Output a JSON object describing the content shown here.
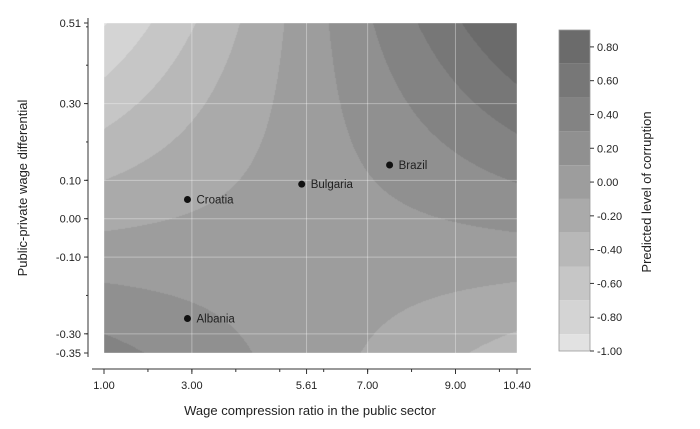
{
  "chart_data": {
    "type": "contour",
    "xlabel": "Wage compression ratio in the public sector",
    "ylabel": "Public-private wage differential",
    "xlim": [
      1.0,
      10.4
    ],
    "ylim": [
      -0.35,
      0.51
    ],
    "x_ticks": [
      {
        "value": 1.0,
        "label": "1.00"
      },
      {
        "value": 3.0,
        "label": "3.00"
      },
      {
        "value": 5.61,
        "label": "5.61"
      },
      {
        "value": 7.0,
        "label": "7.00"
      },
      {
        "value": 9.0,
        "label": "9.00"
      },
      {
        "value": 10.4,
        "label": "10.40"
      }
    ],
    "y_ticks": [
      {
        "value": 0.51,
        "label": "0.51"
      },
      {
        "value": 0.3,
        "label": "0.30"
      },
      {
        "value": 0.1,
        "label": "0.10"
      },
      {
        "value": 0.0,
        "label": "0.00"
      },
      {
        "value": -0.1,
        "label": "-0.10"
      },
      {
        "value": -0.3,
        "label": "-0.30"
      },
      {
        "value": -0.35,
        "label": "-0.35"
      }
    ],
    "saddle": {
      "x": 5.61,
      "y": -0.1
    },
    "countries": [
      {
        "name": "Brazil",
        "x": 7.5,
        "y": 0.14
      },
      {
        "name": "Bulgaria",
        "x": 5.5,
        "y": 0.09
      },
      {
        "name": "Croatia",
        "x": 2.9,
        "y": 0.05
      },
      {
        "name": "Albania",
        "x": 2.9,
        "y": -0.26
      }
    ],
    "colorbar": {
      "label": "Predicted level of corruption",
      "min": -1.0,
      "max": 0.9,
      "ticks": [
        {
          "value": 0.8,
          "label": "0.80"
        },
        {
          "value": 0.6,
          "label": "0.60"
        },
        {
          "value": 0.4,
          "label": "0.40"
        },
        {
          "value": 0.2,
          "label": "0.20"
        },
        {
          "value": 0.0,
          "label": "0.00"
        },
        {
          "value": -0.2,
          "label": "-0.20"
        },
        {
          "value": -0.4,
          "label": "-0.40"
        },
        {
          "value": -0.6,
          "label": "-0.60"
        },
        {
          "value": -0.8,
          "label": "-0.80"
        },
        {
          "value": -1.0,
          "label": "-1.00"
        }
      ],
      "levels": [
        0.9,
        0.7,
        0.5,
        0.3,
        0.1,
        -0.1,
        -0.3,
        -0.5,
        -0.7,
        -0.9,
        -1.0
      ],
      "colors": [
        "#6b6b6b",
        "#777777",
        "#838383",
        "#909090",
        "#9d9d9d",
        "#aaaaaa",
        "#b8b8b8",
        "#c6c6c6",
        "#d4d4d4",
        "#e2e2e2",
        "#efefef"
      ]
    },
    "grid": true
  }
}
